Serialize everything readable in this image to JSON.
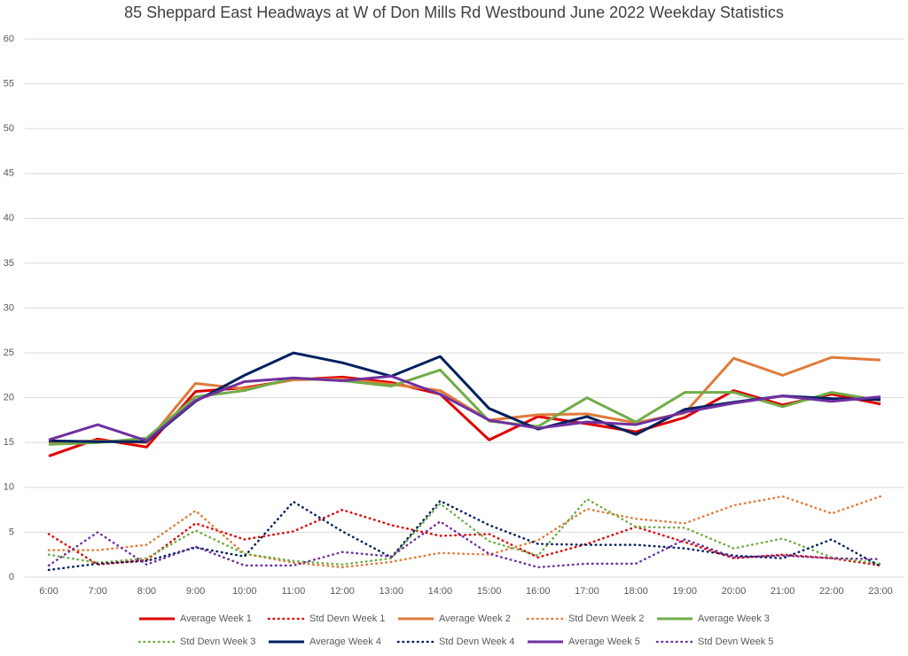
{
  "chart_data": {
    "type": "line",
    "title": "85 Sheppard East Headways at W of Don Mills Rd Westbound June 2022 Weekday Statistics",
    "categories": [
      "6:00",
      "7:00",
      "8:00",
      "9:00",
      "10:00",
      "11:00",
      "12:00",
      "13:00",
      "14:00",
      "15:00",
      "16:00",
      "17:00",
      "18:00",
      "19:00",
      "20:00",
      "21:00",
      "22:00",
      "23:00"
    ],
    "ylim": [
      0,
      60
    ],
    "yticks": [
      0,
      5,
      10,
      15,
      20,
      25,
      30,
      35,
      40,
      45,
      50,
      55,
      60
    ],
    "grid": true,
    "legend": "bottom",
    "series": [
      {
        "name": "Average Week 1",
        "color": "#e00000",
        "line_style": "solid",
        "values": [
          13.5,
          15.4,
          14.5,
          20.7,
          21.1,
          22.0,
          22.3,
          21.7,
          20.4,
          15.3,
          17.9,
          17.1,
          16.2,
          17.8,
          20.8,
          19.2,
          20.4,
          19.3
        ]
      },
      {
        "name": "Std Devn Week 1",
        "color": "#e00000",
        "line_style": "dotted",
        "values": [
          4.8,
          1.4,
          1.9,
          6.0,
          4.2,
          5.1,
          7.5,
          5.8,
          4.6,
          4.8,
          2.2,
          3.7,
          5.6,
          3.9,
          2.1,
          2.5,
          2.1,
          1.3
        ]
      },
      {
        "name": "Average Week 2",
        "color": "#e07b39",
        "line_style": "solid",
        "values": [
          15.0,
          15.2,
          15.0,
          21.6,
          21.0,
          22.0,
          22.1,
          21.5,
          20.8,
          17.5,
          18.1,
          18.2,
          17.2,
          18.3,
          24.4,
          22.5,
          24.5,
          24.2
        ]
      },
      {
        "name": "Std Devn Week 2",
        "color": "#e07b39",
        "line_style": "dotted",
        "values": [
          3.0,
          3.0,
          3.6,
          7.4,
          2.6,
          1.6,
          1.1,
          1.7,
          2.7,
          2.5,
          4.1,
          7.6,
          6.5,
          6.0,
          8.0,
          9.0,
          7.1,
          9.0
        ]
      },
      {
        "name": "Average Week 3",
        "color": "#70ad47",
        "line_style": "solid",
        "values": [
          14.8,
          15.0,
          15.5,
          20.1,
          20.8,
          22.2,
          21.9,
          21.3,
          23.1,
          17.4,
          16.8,
          20.0,
          17.3,
          20.6,
          20.6,
          19.0,
          20.6,
          19.7
        ]
      },
      {
        "name": "Std Devn Week 3",
        "color": "#70ad47",
        "line_style": "dotted",
        "values": [
          2.5,
          1.6,
          2.1,
          5.2,
          2.6,
          1.8,
          1.4,
          2.1,
          8.2,
          4.0,
          2.4,
          8.7,
          5.6,
          5.5,
          3.2,
          4.3,
          2.2,
          1.5
        ]
      },
      {
        "name": "Average Week 4",
        "color": "#002060",
        "line_style": "solid",
        "values": [
          15.2,
          15.1,
          15.1,
          19.6,
          22.5,
          25.0,
          23.9,
          22.4,
          24.6,
          18.8,
          16.5,
          17.9,
          15.9,
          18.7,
          19.5,
          20.2,
          19.9,
          19.8
        ]
      },
      {
        "name": "Std Devn Week 4",
        "color": "#002060",
        "line_style": "dotted",
        "values": [
          0.8,
          1.5,
          1.8,
          3.3,
          2.3,
          8.4,
          5.1,
          2.2,
          8.5,
          5.8,
          3.7,
          3.6,
          3.6,
          3.2,
          2.4,
          2.1,
          4.2,
          1.2
        ]
      },
      {
        "name": "Average Week 5",
        "color": "#7030a0",
        "line_style": "solid",
        "values": [
          15.3,
          17.0,
          15.2,
          19.7,
          21.8,
          22.2,
          21.9,
          22.4,
          20.4,
          17.5,
          16.6,
          17.3,
          17.0,
          18.4,
          19.4,
          20.2,
          19.6,
          20.1
        ]
      },
      {
        "name": "Std Devn Week 5",
        "color": "#7030a0",
        "line_style": "dotted",
        "values": [
          1.3,
          5.0,
          1.4,
          3.4,
          1.3,
          1.3,
          2.8,
          2.3,
          6.2,
          2.6,
          1.1,
          1.5,
          1.5,
          4.2,
          2.2,
          2.4,
          2.1,
          2.0
        ]
      }
    ]
  }
}
